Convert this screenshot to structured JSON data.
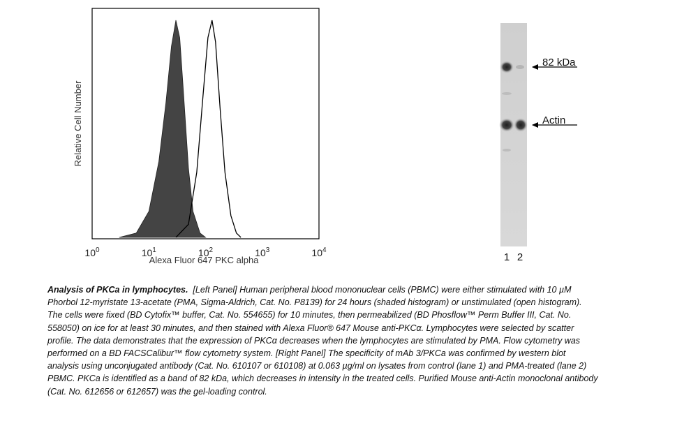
{
  "flow": {
    "ylabel": "Relative Cell Number",
    "xlabel": "Alexa Fluor 647 PKC alpha",
    "ticks": [
      {
        "base": "10",
        "exp": "0"
      },
      {
        "base": "10",
        "exp": "1"
      },
      {
        "base": "10",
        "exp": "2"
      },
      {
        "base": "10",
        "exp": "3"
      },
      {
        "base": "10",
        "exp": "4"
      }
    ]
  },
  "blot": {
    "label_82": "82 kDa",
    "label_actin": "Actin",
    "lane1": "1",
    "lane2": "2"
  },
  "chart_data": {
    "type": "area",
    "xlabel": "Alexa Fluor 647 PKC alpha",
    "ylabel": "Relative Cell Number",
    "x_scale": "log",
    "xlim": [
      1,
      10000
    ],
    "series": [
      {
        "fill": "#444444",
        "x": [
          3,
          6,
          10,
          15,
          20,
          25,
          30,
          35,
          40,
          50,
          60,
          80,
          100
        ],
        "y": [
          0,
          0.02,
          0.12,
          0.35,
          0.62,
          0.88,
          1.0,
          0.92,
          0.7,
          0.32,
          0.12,
          0.02,
          0
        ]
      },
      {
        "fill": "none",
        "x": [
          30,
          50,
          70,
          90,
          110,
          130,
          150,
          180,
          220,
          280,
          350,
          420
        ],
        "y": [
          0,
          0.06,
          0.3,
          0.65,
          0.92,
          1.0,
          0.9,
          0.6,
          0.3,
          0.1,
          0.02,
          0
        ]
      }
    ]
  },
  "caption": {
    "lead": "Analysis of PKCa in lymphocytes.",
    "body": "[Left Panel] Human peripheral blood mononuclear cells (PBMC) were either stimulated with 10 µM Phorbol 12-myristate 13-acetate (PMA, Sigma-Aldrich, Cat. No. P8139) for 24 hours (shaded histogram) or unstimulated (open histogram). The cells were fixed (BD Cytofix™ buffer, Cat. No. 554655) for 10 minutes, then permeabilized (BD Phosflow™ Perm Buffer III, Cat. No. 558050) on ice for at least 30 minutes, and then stained with Alexa Fluor® 647 Mouse anti-PKCα. Lymphocytes were selected by scatter profile. The data demonstrates that the expression of PKCα decreases when the lymphocytes are stimulated by PMA. Flow cytometry was performed on a BD FACSCalibur™ flow cytometry system. [Right Panel] The specificity of mAb 3/PKCa was confirmed by western blot analysis using unconjugated antibody (Cat. No. 610107 or 610108) at 0.063 µg/ml on lysates from control (lane 1) and PMA-treated (lane 2) PBMC. PKCa is identified as a band of 82 kDa, which decreases in intensity in the treated cells. Purified Mouse anti-Actin monoclonal antibody (Cat. No. 612656 or 612657) was the gel-loading control."
  }
}
